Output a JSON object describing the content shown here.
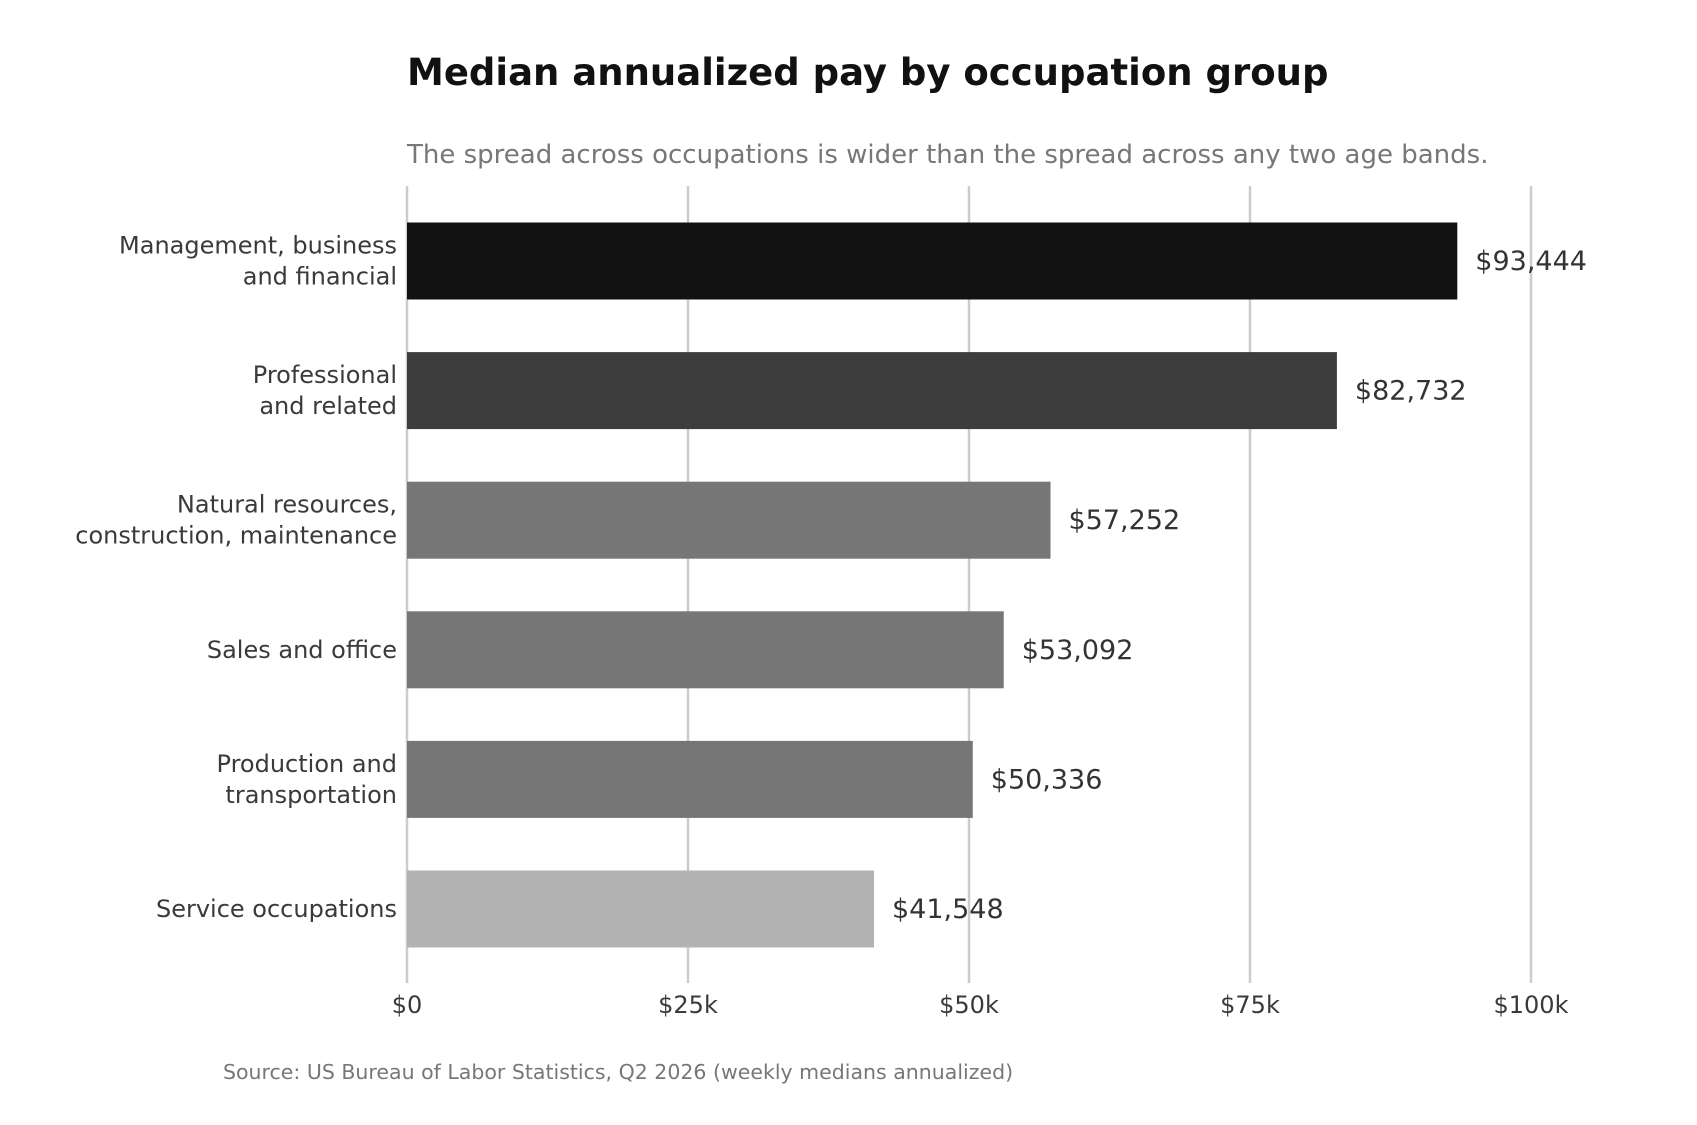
{
  "chart_data": {
    "type": "bar",
    "orientation": "horizontal",
    "title": "Median annualized pay by occupation group",
    "subtitle": "The spread across occupations is wider than the spread across any two age bands.",
    "source": "Source: US Bureau of Labor Statistics, Q2 2026 (weekly medians annualized)",
    "categories": [
      [
        "Management, business",
        "and financial"
      ],
      [
        "Professional",
        "and related"
      ],
      [
        "Natural resources,",
        "construction, maintenance"
      ],
      [
        "Sales and office"
      ],
      [
        "Production and",
        "transportation"
      ],
      [
        "Service occupations"
      ]
    ],
    "values": [
      93444,
      82732,
      57252,
      53092,
      50336,
      41548
    ],
    "value_labels": [
      "$93,444",
      "$82,732",
      "$57,252",
      "$53,092",
      "$50,336",
      "$41,548"
    ],
    "bar_colors": [
      "#121212",
      "#3d3d3d",
      "#767676",
      "#767676",
      "#767676",
      "#b3b3b3"
    ],
    "xlim": [
      0,
      100000
    ],
    "ticks": [
      {
        "value": 0,
        "label": "$0"
      },
      {
        "value": 25000,
        "label": "$25k"
      },
      {
        "value": 50000,
        "label": "$50k"
      },
      {
        "value": 75000,
        "label": "$75k"
      },
      {
        "value": 100000,
        "label": "$100k"
      }
    ],
    "grid": true,
    "grid_color": "#cccccc"
  }
}
